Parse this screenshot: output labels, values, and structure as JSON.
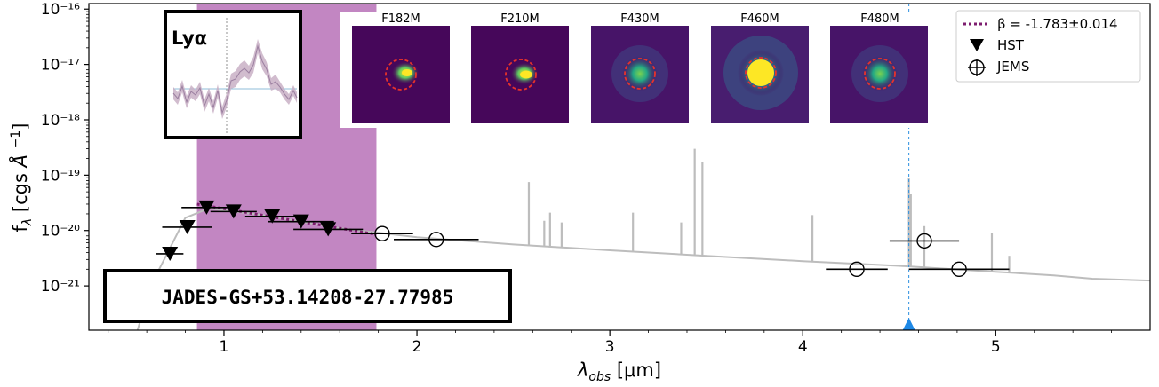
{
  "object_id": "JADES-GS+53.14208-27.77985",
  "inset_label": "Lyα",
  "thumbnails": [
    "F182M",
    "F210M",
    "F430M",
    "F460M",
    "F480M"
  ],
  "legend": {
    "beta_label": "β = -1.783±0.014",
    "hst_label": "HST",
    "jems_label": "JEMS"
  },
  "chart_data": {
    "type": "scatter",
    "xlabel": "λobs [μm]",
    "ylabel": "fλ [cgs Å⁻¹]",
    "xlim": [
      0.3,
      5.8
    ],
    "ylim_log10": [
      -21.8,
      -15.9
    ],
    "yscale": "log",
    "x_ticks": [
      1,
      2,
      3,
      4,
      5
    ],
    "y_ticks": [
      "10⁻¹⁶",
      "10⁻¹⁷",
      "10⁻¹⁸",
      "10⁻¹⁹",
      "10⁻²⁰",
      "10⁻²¹"
    ],
    "y_tick_exponents": [
      -16,
      -17,
      -18,
      -19,
      -20,
      -21
    ],
    "highlight_band_um": [
      0.86,
      1.79
    ],
    "emission_line_marker_um": 4.55,
    "series": [
      {
        "name": "HST",
        "marker": "filled-triangle-down",
        "points": [
          {
            "x": 0.72,
            "y": 3.8e-21,
            "xerr": 0.07
          },
          {
            "x": 0.81,
            "y": 1.15e-20,
            "xerr": 0.13
          },
          {
            "x": 0.91,
            "y": 2.6e-20,
            "xerr": 0.13
          },
          {
            "x": 1.05,
            "y": 2.2e-20,
            "xerr": 0.12
          },
          {
            "x": 1.25,
            "y": 1.8e-20,
            "xerr": 0.14
          },
          {
            "x": 1.4,
            "y": 1.45e-20,
            "xerr": 0.17
          },
          {
            "x": 1.54,
            "y": 1.05e-20,
            "xerr": 0.18
          }
        ]
      },
      {
        "name": "JEMS",
        "marker": "open-circle",
        "points": [
          {
            "x": 1.82,
            "y": 8.8e-21,
            "xerr": 0.16
          },
          {
            "x": 2.1,
            "y": 6.9e-21,
            "xerr": 0.22
          },
          {
            "x": 4.28,
            "y": 2e-21,
            "xerr": 0.16
          },
          {
            "x": 4.63,
            "y": 6.5e-21,
            "xerr": 0.18
          },
          {
            "x": 4.81,
            "y": 2e-21,
            "xerr": 0.26
          }
        ]
      }
    ],
    "beta_fit": {
      "x": [
        0.86,
        1.79
      ],
      "y": [
        3e-20,
        8.5e-21
      ]
    },
    "model_continuum": [
      [
        0.55,
        1.5e-22
      ],
      [
        0.62,
        1e-21
      ],
      [
        0.7,
        3.5e-21
      ],
      [
        0.8,
        1.7e-20
      ],
      [
        0.92,
        2.5e-20
      ],
      [
        1.2,
        1.9e-20
      ],
      [
        1.6,
        1.1e-20
      ],
      [
        2.0,
        7.6e-21
      ],
      [
        2.5,
        5.6e-21
      ],
      [
        3.0,
        4.4e-21
      ],
      [
        3.5,
        3.5e-21
      ],
      [
        4.0,
        2.8e-21
      ],
      [
        4.5,
        2.3e-21
      ],
      [
        5.0,
        1.8e-21
      ],
      [
        5.3,
        1.55e-21
      ],
      [
        5.5,
        1.35e-21
      ],
      [
        5.8,
        1.25e-21
      ]
    ],
    "model_lines": [
      {
        "x": 2.58,
        "peak": 7.5e-20
      },
      {
        "x": 2.66,
        "peak": 1.5e-20
      },
      {
        "x": 2.69,
        "peak": 2.1e-20
      },
      {
        "x": 2.75,
        "peak": 1.4e-20
      },
      {
        "x": 3.12,
        "peak": 2.1e-20
      },
      {
        "x": 3.37,
        "peak": 1.4e-20
      },
      {
        "x": 3.44,
        "peak": 3e-19
      },
      {
        "x": 3.48,
        "peak": 1.7e-19
      },
      {
        "x": 4.05,
        "peak": 1.9e-20
      },
      {
        "x": 4.55,
        "peak": 9e-20
      },
      {
        "x": 4.56,
        "peak": 4.5e-20
      },
      {
        "x": 4.63,
        "peak": 1.2e-20
      },
      {
        "x": 4.98,
        "peak": 9e-21
      },
      {
        "x": 5.07,
        "peak": 3.5e-21
      }
    ]
  }
}
